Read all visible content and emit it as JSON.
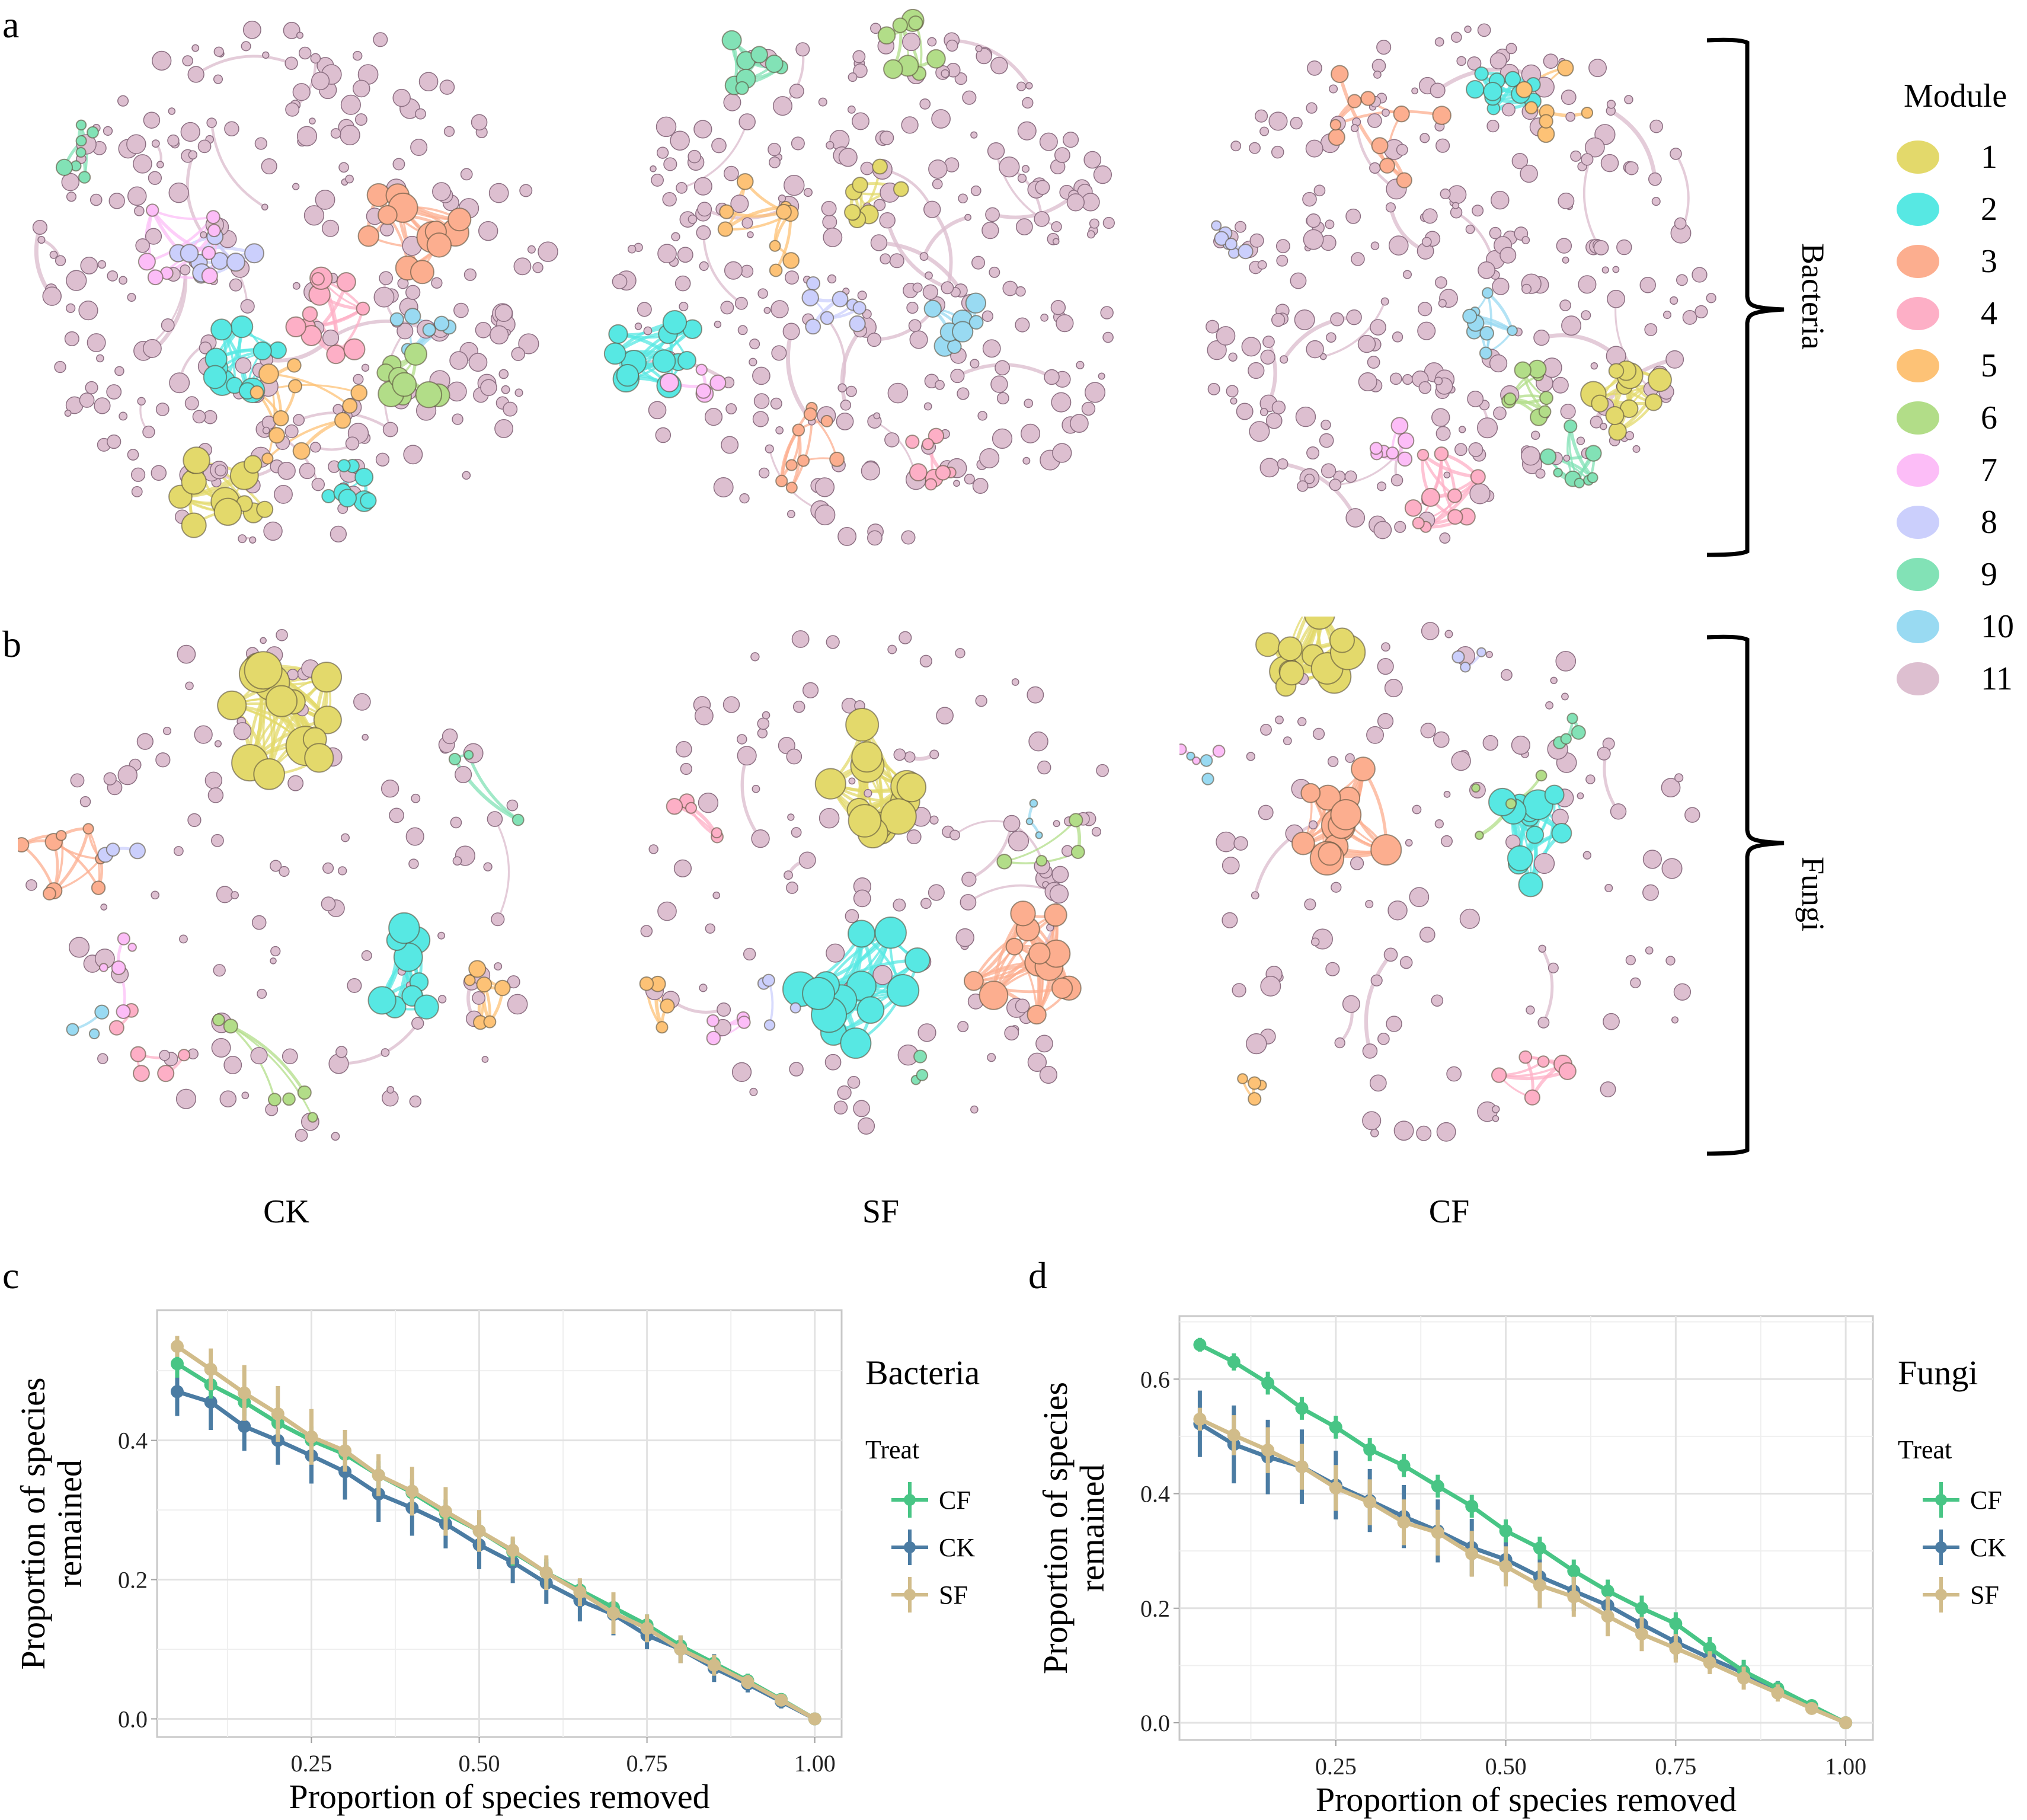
{
  "figure": {
    "panel_letters": [
      "a",
      "b",
      "c",
      "d"
    ],
    "column_labels": [
      "CK",
      "SF",
      "CF"
    ],
    "row_labels": {
      "bacteria": "Bacteria",
      "fungi": "Fungi"
    },
    "module_legend": {
      "title": "Module",
      "items": [
        {
          "label": "1",
          "color": "#e3d96b"
        },
        {
          "label": "2",
          "color": "#57e8e3"
        },
        {
          "label": "3",
          "color": "#fcae8f"
        },
        {
          "label": "4",
          "color": "#fdafc6"
        },
        {
          "label": "5",
          "color": "#fdc276"
        },
        {
          "label": "6",
          "color": "#b2dd88"
        },
        {
          "label": "7",
          "color": "#fcbdf7"
        },
        {
          "label": "8",
          "color": "#cbcffc"
        },
        {
          "label": "9",
          "color": "#82e2b6"
        },
        {
          "label": "10",
          "color": "#99daf2"
        },
        {
          "label": "11",
          "color": "#ddbfd0"
        }
      ]
    },
    "networks": [
      {
        "row": "Bacteria",
        "treatment": "CK",
        "major_modules": [
          "1",
          "2",
          "3",
          "4",
          "5",
          "6",
          "7",
          "8",
          "9",
          "10"
        ]
      },
      {
        "row": "Bacteria",
        "treatment": "SF",
        "major_modules": [
          "1",
          "2",
          "3",
          "4",
          "5",
          "6",
          "7",
          "8",
          "9",
          "10"
        ]
      },
      {
        "row": "Bacteria",
        "treatment": "CF",
        "major_modules": [
          "1",
          "2",
          "3",
          "4",
          "5",
          "6",
          "7",
          "8",
          "9",
          "10"
        ]
      },
      {
        "row": "Fungi",
        "treatment": "CK",
        "major_modules": [
          "1",
          "2",
          "3",
          "4",
          "5",
          "6",
          "7",
          "8",
          "9",
          "10"
        ]
      },
      {
        "row": "Fungi",
        "treatment": "SF",
        "major_modules": [
          "1",
          "2",
          "3",
          "4",
          "5",
          "6",
          "7",
          "8",
          "9",
          "10"
        ]
      },
      {
        "row": "Fungi",
        "treatment": "CF",
        "major_modules": [
          "1",
          "2",
          "3",
          "4",
          "5",
          "6",
          "7",
          "8",
          "9",
          "10"
        ]
      }
    ]
  },
  "chart_data": [
    {
      "panel": "c",
      "type": "line",
      "title": "Bacteria",
      "xlabel": "Proportion of species removed",
      "ylabel": "Proportion of species\nremained",
      "xlim": [
        0.02,
        1.04
      ],
      "ylim": [
        -0.026,
        0.587
      ],
      "xticks": [
        0.25,
        0.5,
        0.75,
        1.0
      ],
      "xtick_labels": [
        "0.25",
        "0.50",
        "0.75",
        "1.00"
      ],
      "yticks": [
        0.0,
        0.2,
        0.4
      ],
      "ytick_labels": [
        "0.0",
        "0.2",
        "0.4"
      ],
      "grid": true,
      "legend": {
        "title": "Treat",
        "position": "right"
      },
      "x": [
        0.05,
        0.1,
        0.15,
        0.2,
        0.25,
        0.3,
        0.35,
        0.4,
        0.45,
        0.5,
        0.55,
        0.6,
        0.65,
        0.7,
        0.75,
        0.8,
        0.85,
        0.9,
        0.95,
        1.0
      ],
      "series": [
        {
          "name": "CF",
          "color": "#48c585",
          "values": [
            0.51,
            0.48,
            0.455,
            0.425,
            0.4,
            0.38,
            0.35,
            0.325,
            0.295,
            0.27,
            0.24,
            0.21,
            0.185,
            0.16,
            0.135,
            0.105,
            0.08,
            0.055,
            0.028,
            0.0
          ],
          "err": [
            0.02,
            0.02,
            0.02,
            0.02,
            0.02,
            0.02,
            0.02,
            0.02,
            0.02,
            0.02,
            0.02,
            0.02,
            0.015,
            0.015,
            0.015,
            0.012,
            0.012,
            0.01,
            0.008,
            0.0
          ]
        },
        {
          "name": "CK",
          "color": "#4b7ca3",
          "values": [
            0.47,
            0.455,
            0.42,
            0.4,
            0.378,
            0.355,
            0.323,
            0.303,
            0.28,
            0.25,
            0.225,
            0.195,
            0.17,
            0.15,
            0.12,
            0.1,
            0.073,
            0.05,
            0.025,
            0.0
          ],
          "err": [
            0.035,
            0.04,
            0.035,
            0.035,
            0.04,
            0.04,
            0.04,
            0.04,
            0.035,
            0.035,
            0.03,
            0.03,
            0.03,
            0.03,
            0.02,
            0.02,
            0.02,
            0.012,
            0.01,
            0.0
          ]
        },
        {
          "name": "SF",
          "color": "#d1bc8a",
          "values": [
            0.535,
            0.502,
            0.468,
            0.438,
            0.405,
            0.385,
            0.35,
            0.327,
            0.298,
            0.27,
            0.242,
            0.21,
            0.182,
            0.152,
            0.13,
            0.1,
            0.077,
            0.053,
            0.027,
            0.0
          ],
          "err": [
            0.015,
            0.03,
            0.04,
            0.04,
            0.04,
            0.03,
            0.03,
            0.035,
            0.035,
            0.03,
            0.02,
            0.025,
            0.02,
            0.03,
            0.02,
            0.02,
            0.015,
            0.01,
            0.008,
            0.0
          ]
        }
      ]
    },
    {
      "panel": "d",
      "type": "line",
      "title": "Fungi",
      "xlabel": "Proportion of species removed",
      "ylabel": "Proportion of species\nremained",
      "xlim": [
        0.02,
        1.04
      ],
      "ylim": [
        -0.03,
        0.71
      ],
      "xticks": [
        0.25,
        0.5,
        0.75,
        1.0
      ],
      "xtick_labels": [
        "0.25",
        "0.50",
        "0.75",
        "1.00"
      ],
      "yticks": [
        0.0,
        0.2,
        0.4,
        0.6
      ],
      "ytick_labels": [
        "0.0",
        "0.2",
        "0.4",
        "0.6"
      ],
      "grid": true,
      "legend": {
        "title": "Treat",
        "position": "right"
      },
      "x": [
        0.05,
        0.1,
        0.15,
        0.2,
        0.25,
        0.3,
        0.35,
        0.4,
        0.45,
        0.5,
        0.55,
        0.6,
        0.65,
        0.7,
        0.75,
        0.8,
        0.85,
        0.9,
        0.95,
        1.0
      ],
      "series": [
        {
          "name": "CF",
          "color": "#48c585",
          "values": [
            0.66,
            0.63,
            0.593,
            0.549,
            0.516,
            0.477,
            0.449,
            0.413,
            0.378,
            0.335,
            0.305,
            0.265,
            0.23,
            0.2,
            0.173,
            0.13,
            0.09,
            0.06,
            0.03,
            0.0
          ],
          "err": [
            0.012,
            0.015,
            0.02,
            0.02,
            0.02,
            0.02,
            0.02,
            0.02,
            0.02,
            0.02,
            0.02,
            0.02,
            0.02,
            0.022,
            0.02,
            0.02,
            0.02,
            0.012,
            0.01,
            0.0
          ]
        },
        {
          "name": "CK",
          "color": "#4b7ca3",
          "values": [
            0.522,
            0.486,
            0.464,
            0.447,
            0.415,
            0.388,
            0.36,
            0.335,
            0.306,
            0.285,
            0.255,
            0.23,
            0.205,
            0.172,
            0.141,
            0.113,
            0.087,
            0.058,
            0.028,
            0.0
          ],
          "err": [
            0.058,
            0.068,
            0.065,
            0.065,
            0.06,
            0.055,
            0.055,
            0.055,
            0.05,
            0.04,
            0.04,
            0.035,
            0.03,
            0.03,
            0.03,
            0.02,
            0.02,
            0.015,
            0.01,
            0.0
          ]
        },
        {
          "name": "SF",
          "color": "#d1bc8a",
          "values": [
            0.53,
            0.502,
            0.476,
            0.447,
            0.41,
            0.385,
            0.35,
            0.332,
            0.295,
            0.273,
            0.24,
            0.22,
            0.186,
            0.155,
            0.13,
            0.105,
            0.078,
            0.052,
            0.025,
            0.0
          ],
          "err": [
            0.02,
            0.035,
            0.04,
            0.04,
            0.04,
            0.04,
            0.04,
            0.04,
            0.04,
            0.035,
            0.04,
            0.035,
            0.035,
            0.03,
            0.025,
            0.02,
            0.02,
            0.015,
            0.01,
            0.0
          ]
        }
      ]
    }
  ]
}
